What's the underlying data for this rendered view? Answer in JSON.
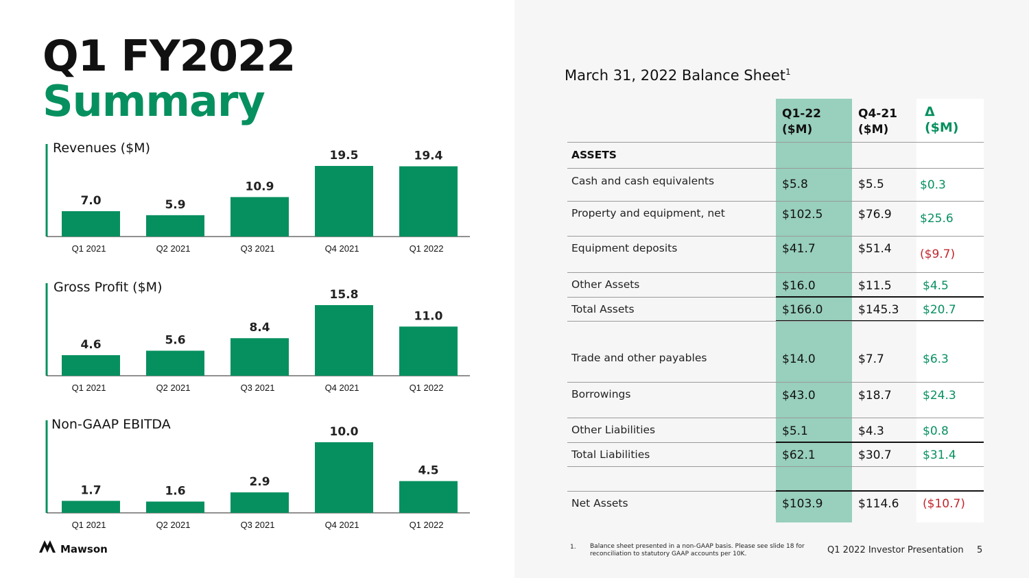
{
  "title_line1": "Q1 FY2022",
  "title_line2": "Summary",
  "colors": {
    "accent": "#07905f",
    "highlight": "#98cfbd",
    "negative": "#c0262d"
  },
  "chart_data": [
    {
      "type": "bar",
      "title": "Revenues ($M)",
      "categories": [
        "Q1 2021",
        "Q2 2021",
        "Q3 2021",
        "Q4 2021",
        "Q1 2022"
      ],
      "values": [
        7.0,
        5.9,
        10.9,
        19.5,
        19.4
      ],
      "labels": [
        "7.0",
        "5.9",
        "10.9",
        "19.5",
        "19.4"
      ],
      "ylim": [
        0,
        19.5
      ]
    },
    {
      "type": "bar",
      "title": "Gross Profit ($M)",
      "categories": [
        "Q1 2021",
        "Q2 2021",
        "Q3 2021",
        "Q4 2021",
        "Q1 2022"
      ],
      "values": [
        4.6,
        5.6,
        8.4,
        15.8,
        11.0
      ],
      "labels": [
        "4.6",
        "5.6",
        "8.4",
        "15.8",
        "11.0"
      ],
      "ylim": [
        0,
        15.8
      ]
    },
    {
      "type": "bar",
      "title": "Non-GAAP EBITDA",
      "categories": [
        "Q1 2021",
        "Q2 2021",
        "Q3 2021",
        "Q4 2021",
        "Q1 2022"
      ],
      "values": [
        1.7,
        1.6,
        2.9,
        10.0,
        4.5
      ],
      "labels": [
        "1.7",
        "1.6",
        "2.9",
        "10.0",
        "4.5"
      ],
      "ylim": [
        0,
        10.0
      ]
    }
  ],
  "balance_sheet": {
    "title": "March 31, 2022 Balance Sheet",
    "title_sup": "1",
    "headers": [
      "Q1-22\n($M)",
      "Q4-21\n($M)",
      "Δ\n($M)"
    ],
    "assets_label": "ASSETS",
    "rows": [
      {
        "label": "Cash and cash equivalents",
        "q1": "$5.8",
        "q4": "$5.5",
        "delta": "$0.3"
      },
      {
        "label": "Property and equipment, net",
        "q1": "$102.5",
        "q4": "$76.9",
        "delta": "$25.6"
      },
      {
        "label": "Equipment deposits",
        "q1": "$41.7",
        "q4": "$51.4",
        "delta": "($9.7)"
      },
      {
        "label": "Other Assets",
        "q1": "$16.0",
        "q4": "$11.5",
        "delta": "$4.5"
      },
      {
        "label": "Total Assets",
        "q1": "$166.0",
        "q4": "$145.3",
        "delta": "$20.7"
      },
      {
        "label": "Trade and other payables",
        "q1": "$14.0",
        "q4": "$7.7",
        "delta": "$6.3"
      },
      {
        "label": "Borrowings",
        "q1": "$43.0",
        "q4": "$18.7",
        "delta": "$24.3"
      },
      {
        "label": "Other Liabilities",
        "q1": "$5.1",
        "q4": "$4.3",
        "delta": "$0.8"
      },
      {
        "label": "Total Liabilities",
        "q1": "$62.1",
        "q4": "$30.7",
        "delta": "$31.4"
      },
      {
        "label": "Net Assets",
        "q1": "$103.9",
        "q4": "$114.6",
        "delta": "($10.7)"
      }
    ]
  },
  "footnote_number": "1.",
  "footnote": "Balance sheet presented in a non-GAAP basis. Please see slide 18 for reconciliation to statutory GAAP accounts per 10K.",
  "footer": "Q1 2022 Investor Presentation",
  "page_number": "5",
  "logo_text": "Mawson"
}
